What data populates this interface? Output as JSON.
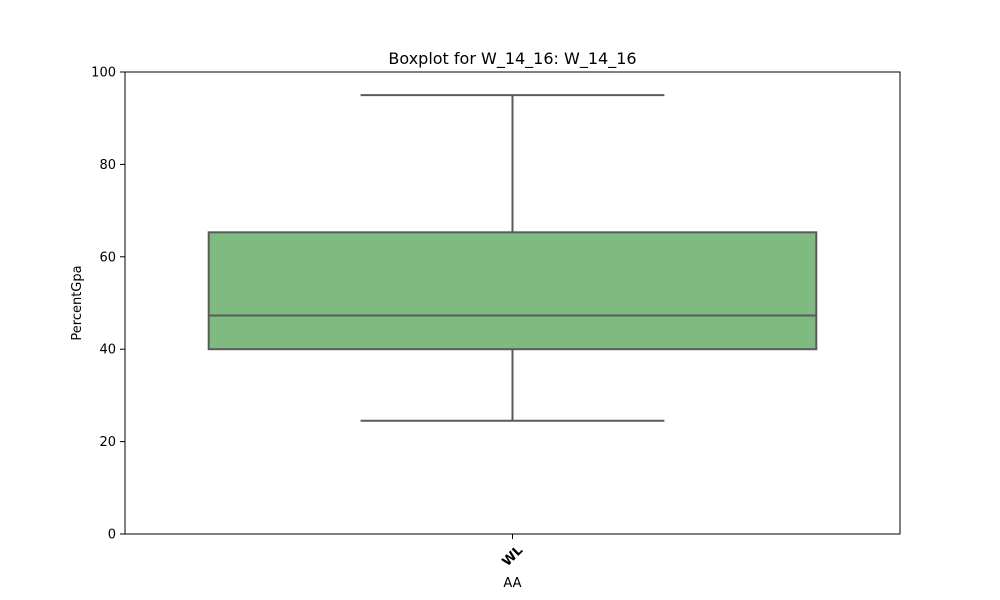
{
  "chart_data": {
    "type": "boxplot",
    "title": "Boxplot for W_14_16: W_14_16",
    "xlabel": "AA",
    "ylabel": "PercentGpa",
    "ylim": [
      0,
      100
    ],
    "yticks": [
      0,
      20,
      40,
      60,
      80,
      100
    ],
    "categories": [
      "WL"
    ],
    "boxes": [
      {
        "category": "WL",
        "whisker_low": 24.5,
        "q1": 40,
        "median": 47.3,
        "q3": 65.3,
        "whisker_high": 95
      }
    ],
    "colors": {
      "box_fill": "#7fbb81",
      "box_edge": "#5a5a5a"
    },
    "grid": false,
    "legend": "none"
  }
}
